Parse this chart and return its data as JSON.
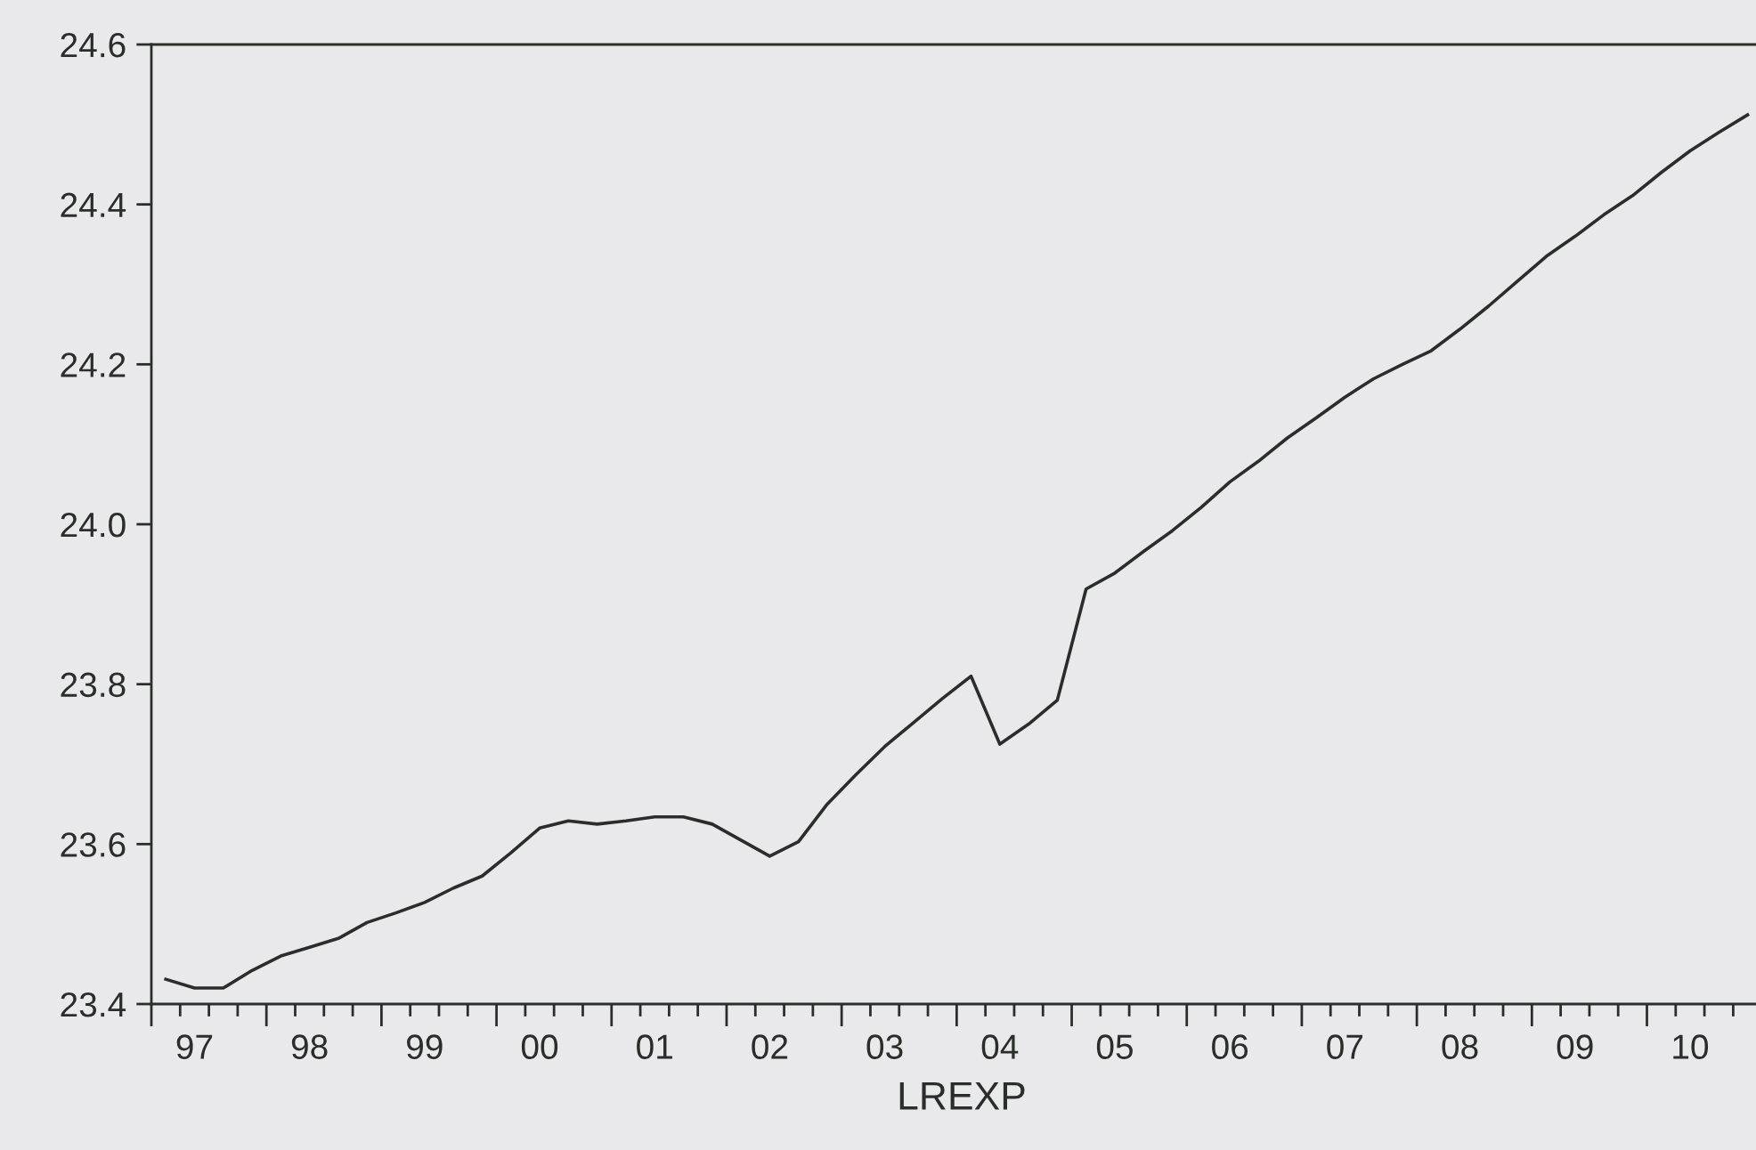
{
  "chart_data": {
    "type": "line",
    "xlabel": "LREXP",
    "categories": [
      null,
      "97",
      null,
      null,
      null,
      "98",
      null,
      null,
      null,
      "99",
      null,
      null,
      null,
      "00",
      null,
      null,
      null,
      "01",
      null,
      null,
      null,
      "02",
      null,
      null,
      null,
      "03",
      null,
      null,
      null,
      "04",
      null,
      null,
      null,
      "05",
      null,
      null,
      null,
      "06",
      null,
      null,
      null,
      "07",
      null,
      null,
      null,
      "08",
      null,
      null,
      null,
      "09",
      null,
      null,
      null,
      "10",
      null,
      null
    ],
    "series": [
      {
        "color": "#2a2e2a",
        "values": [
          23.431,
          23.42,
          23.42,
          23.442,
          23.46,
          23.471,
          23.482,
          23.502,
          23.514,
          23.527,
          23.545,
          23.56,
          23.589,
          23.62,
          23.629,
          23.625,
          23.629,
          23.634,
          23.634,
          23.625,
          23.605,
          23.585,
          23.603,
          23.65,
          23.687,
          23.722,
          23.752,
          23.782,
          23.81,
          23.725,
          23.75,
          23.78,
          23.919,
          23.939,
          23.966,
          23.992,
          24.021,
          24.053,
          24.079,
          24.108,
          24.133,
          24.159,
          24.182,
          24.2,
          24.217,
          24.244,
          24.273,
          24.304,
          24.335,
          24.36,
          24.387,
          24.411,
          24.44,
          24.467,
          24.49,
          24.512
        ]
      }
    ],
    "ylim": [
      23.4,
      24.6
    ],
    "yticks": [
      {
        "value": 23.4,
        "label": "23.4"
      },
      {
        "value": 23.6,
        "label": "23.6"
      },
      {
        "value": 23.8,
        "label": "23.8"
      },
      {
        "value": 24.0,
        "label": "24.0"
      },
      {
        "value": 24.2,
        "label": "24.2"
      },
      {
        "value": 24.4,
        "label": "24.4"
      },
      {
        "value": 24.6,
        "label": "24.6"
      }
    ],
    "grid": false,
    "marker": "none",
    "line_style": "solid"
  }
}
